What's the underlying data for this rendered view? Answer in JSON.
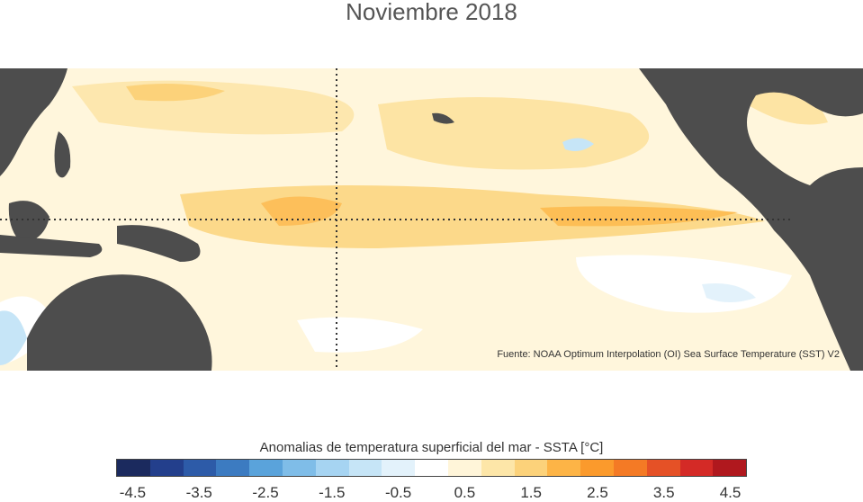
{
  "title": "Noviembre 2018",
  "source": "Fuente: NOAA Optimum Interpolation (OI) Sea Surface Temperature (SST) V2",
  "colorbar": {
    "title": "Anomalias de temperatura superficial del mar - SSTA  [°C]",
    "ticks": [
      "-4.5",
      "-3.5",
      "-2.5",
      "-1.5",
      "-0.5",
      "0.5",
      "1.5",
      "2.5",
      "3.5",
      "4.5"
    ],
    "colors": [
      "#1b2a5e",
      "#233f8c",
      "#2d5ba8",
      "#3c7bc1",
      "#5aa3db",
      "#7fbde8",
      "#a6d4f2",
      "#c6e5f7",
      "#e3f2fb",
      "#ffffff",
      "#fff5d9",
      "#fde6a8",
      "#fcd27a",
      "#fdb446",
      "#fb9a2c",
      "#f47a25",
      "#e55126",
      "#d42a26",
      "#b0181e"
    ]
  }
}
